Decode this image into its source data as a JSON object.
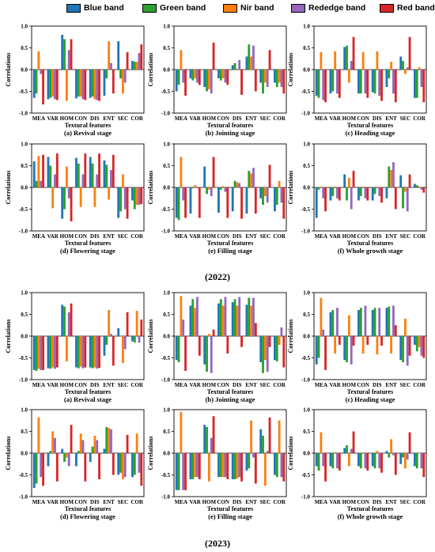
{
  "legend": [
    {
      "name": "Blue band",
      "color": "#1f77b4"
    },
    {
      "name": "Green  band",
      "color": "#2ca02c"
    },
    {
      "name": "Nir band",
      "color": "#ff7f0e"
    },
    {
      "name": "Rededge band",
      "color": "#9467bd"
    },
    {
      "name": "Red band",
      "color": "#d62728"
    }
  ],
  "years": [
    "(2022)",
    "(2023)"
  ],
  "chart_data": [
    {
      "type": "bar",
      "title": "(a) Revival stage",
      "xlabel": "Textural features",
      "ylabel": "Correlations",
      "categories": [
        "MEA",
        "VAR",
        "HOM",
        "CON",
        "DIS",
        "ENT",
        "SEC",
        "COR"
      ],
      "ylim": [
        -1.0,
        1.0
      ],
      "yticks": [
        "-1.0",
        "-0.5",
        "0.0",
        "0.5",
        "1.0"
      ],
      "series": [
        {
          "name": "Blue band",
          "values": [
            -0.65,
            -0.68,
            0.8,
            -0.66,
            -0.65,
            -0.6,
            0.65,
            0.2
          ]
        },
        {
          "name": "Green  band",
          "values": [
            -0.55,
            -0.65,
            0.7,
            -0.62,
            -0.62,
            -0.2,
            -0.2,
            0.18
          ]
        },
        {
          "name": "Nir band",
          "values": [
            0.42,
            -0.62,
            -0.72,
            -0.62,
            -0.68,
            0.65,
            -0.55,
            0.18
          ]
        },
        {
          "name": "Rededge band",
          "values": [
            -0.1,
            -0.68,
            0.45,
            -0.68,
            -0.7,
            0.15,
            -0.3,
            0.38
          ]
        },
        {
          "name": "Red band",
          "values": [
            -0.8,
            -0.7,
            0.7,
            -0.7,
            -0.72,
            -0.55,
            0.4,
            0.58
          ]
        }
      ]
    },
    {
      "type": "bar",
      "title": "(b) Jointing stage",
      "xlabel": "Textural features",
      "ylabel": "Correlations",
      "categories": [
        "MEA",
        "VAR",
        "HOM",
        "CON",
        "DIS",
        "ENT",
        "SEC",
        "COR"
      ],
      "ylim": [
        -1.0,
        1.0
      ],
      "yticks": [
        "-1.0",
        "-0.5",
        "0.0",
        "0.5",
        "1.0"
      ],
      "series": [
        {
          "name": "Blue band",
          "values": [
            -0.5,
            -0.2,
            -0.4,
            -0.2,
            0.1,
            0.3,
            -0.3,
            -0.3
          ]
        },
        {
          "name": "Green  band",
          "values": [
            -0.35,
            -0.25,
            -0.5,
            -0.25,
            0.15,
            0.58,
            -0.55,
            -0.4
          ]
        },
        {
          "name": "Nir band",
          "values": [
            0.45,
            -0.2,
            -0.45,
            -0.2,
            0.02,
            0.3,
            -0.3,
            -0.3
          ]
        },
        {
          "name": "Rededge band",
          "values": [
            -0.3,
            -0.3,
            -0.55,
            -0.3,
            0.22,
            0.55,
            -0.4,
            -0.4
          ]
        },
        {
          "name": "Red band",
          "values": [
            -0.6,
            -0.35,
            0.62,
            -0.35,
            -0.58,
            -0.5,
            0.45,
            -0.55
          ]
        }
      ]
    },
    {
      "type": "bar",
      "title": "(c) Heading stage",
      "xlabel": "Textural features",
      "ylabel": "Correlations",
      "categories": [
        "MEA",
        "VAR",
        "HOM",
        "CON",
        "DIS",
        "ENT",
        "SEC",
        "COR"
      ],
      "ylim": [
        -1.0,
        1.0
      ],
      "yticks": [
        "-1.0",
        "-0.5",
        "0.0",
        "0.5",
        "1.0"
      ],
      "series": [
        {
          "name": "Blue band",
          "values": [
            -0.6,
            -0.55,
            0.52,
            -0.55,
            -0.52,
            -0.4,
            0.3,
            -0.65
          ]
        },
        {
          "name": "Green  band",
          "values": [
            -0.65,
            -0.5,
            0.55,
            -0.55,
            -0.55,
            -0.2,
            0.2,
            -0.65
          ]
        },
        {
          "name": "Nir band",
          "values": [
            0.4,
            0.42,
            -0.3,
            0.4,
            0.42,
            0.18,
            -0.1,
            0.05
          ]
        },
        {
          "name": "Rededge band",
          "values": [
            -0.7,
            -0.55,
            0.2,
            -0.55,
            -0.6,
            -0.55,
            0.05,
            -0.4
          ]
        },
        {
          "name": "Red band",
          "values": [
            -0.75,
            -0.65,
            0.75,
            -0.65,
            -0.72,
            -0.75,
            0.75,
            -0.75
          ]
        }
      ]
    },
    {
      "type": "bar",
      "title": "(d) Flowering stage",
      "xlabel": "Textural features",
      "ylabel": "Correlations",
      "categories": [
        "MEA",
        "VAR",
        "HOM",
        "CON",
        "DIS",
        "ENT",
        "SEC",
        "COR"
      ],
      "ylim": [
        -1.0,
        1.0
      ],
      "yticks": [
        "-1.0",
        "-0.5",
        "0.0",
        "0.5",
        "1.0"
      ],
      "series": [
        {
          "name": "Blue band",
          "values": [
            0.6,
            0.7,
            -0.72,
            0.68,
            0.7,
            0.62,
            -0.7,
            -0.3
          ]
        },
        {
          "name": "Green  band",
          "values": [
            0.15,
            0.5,
            -0.5,
            0.55,
            0.55,
            0.52,
            -0.55,
            -0.5
          ]
        },
        {
          "name": "Nir band",
          "values": [
            0.72,
            -0.48,
            0.48,
            -0.45,
            -0.45,
            -0.28,
            0.3,
            -0.4
          ]
        },
        {
          "name": "Rededge band",
          "values": [
            0.15,
            0.3,
            -0.25,
            0.3,
            0.3,
            0.4,
            -0.5,
            -0.4
          ]
        },
        {
          "name": "Red band",
          "values": [
            0.75,
            0.78,
            -0.78,
            0.78,
            0.78,
            0.75,
            -0.72,
            -0.38
          ]
        }
      ]
    },
    {
      "type": "bar",
      "title": "(e) Filling stage",
      "xlabel": "Textural features",
      "ylabel": "Correlations",
      "categories": [
        "MEA",
        "VAR",
        "HOM",
        "CON",
        "DIS",
        "ENT",
        "SEC",
        "COR"
      ],
      "ylim": [
        -1.0,
        1.0
      ],
      "yticks": [
        "-1.0",
        "-0.5",
        "0.0",
        "0.5",
        "1.0"
      ],
      "series": [
        {
          "name": "Blue band",
          "values": [
            -0.7,
            -0.6,
            0.48,
            -0.58,
            -0.55,
            -0.6,
            -0.25,
            -0.55
          ]
        },
        {
          "name": "Green  band",
          "values": [
            -0.75,
            -0.02,
            -0.15,
            -0.05,
            0.15,
            0.38,
            -0.4,
            -0.4
          ]
        },
        {
          "name": "Nir band",
          "values": [
            0.7,
            0.05,
            -0.05,
            0.03,
            0.12,
            0.32,
            -0.2,
            0.15
          ]
        },
        {
          "name": "Rededge band",
          "values": [
            -0.3,
            0.02,
            -0.2,
            -0.1,
            0.1,
            0.45,
            -0.35,
            -0.35
          ]
        },
        {
          "name": "Red band",
          "values": [
            -0.7,
            -0.7,
            0.7,
            -0.7,
            -0.72,
            -0.6,
            0.52,
            -0.72
          ]
        }
      ]
    },
    {
      "type": "bar",
      "title": "(f) Whole growth stage",
      "xlabel": "Textural features",
      "ylabel": "Correlations",
      "categories": [
        "MEA",
        "VAR",
        "HOM",
        "CON",
        "DIS",
        "ENT",
        "SEC",
        "COR"
      ],
      "ylim": [
        -1.0,
        1.0
      ],
      "yticks": [
        "-1.0",
        "-0.5",
        "0.0",
        "0.5",
        "1.0"
      ],
      "series": [
        {
          "name": "Blue band",
          "values": [
            -0.7,
            -0.3,
            0.3,
            -0.3,
            -0.3,
            -0.25,
            0.28,
            0.08
          ]
        },
        {
          "name": "Green  band",
          "values": [
            -0.05,
            -0.2,
            -0.3,
            -0.2,
            -0.15,
            0.48,
            -0.48,
            0.05
          ]
        },
        {
          "name": "Nir band",
          "values": [
            0.02,
            0.02,
            0.22,
            0.02,
            0.02,
            0.4,
            -0.1,
            0.02
          ]
        },
        {
          "name": "Rededge band",
          "values": [
            -0.25,
            -0.25,
            -0.5,
            -0.25,
            -0.2,
            0.58,
            -0.55,
            -0.05
          ]
        },
        {
          "name": "Red band",
          "values": [
            -0.55,
            -0.3,
            0.38,
            -0.3,
            -0.35,
            -0.5,
            0.3,
            -0.12
          ]
        }
      ]
    },
    {
      "type": "bar",
      "title": "(a) Revival stage",
      "xlabel": "Textural features",
      "ylabel": "Correlations",
      "categories": [
        "MEA",
        "VAR",
        "HOM",
        "CON",
        "DIS",
        "ENT",
        "SEC",
        "COR"
      ],
      "ylim": [
        -1.0,
        1.0
      ],
      "yticks": [
        "-1.0",
        "-0.5",
        "0.0",
        "0.5",
        "1.0"
      ],
      "series": [
        {
          "name": "Blue band",
          "values": [
            -0.78,
            -0.74,
            0.72,
            -0.72,
            -0.72,
            -0.45,
            0.18,
            -0.12
          ]
        },
        {
          "name": "Green  band",
          "values": [
            -0.8,
            -0.75,
            0.68,
            -0.74,
            -0.74,
            -0.2,
            0.0,
            -0.15
          ]
        },
        {
          "name": "Nir band",
          "values": [
            -0.75,
            -0.72,
            -0.58,
            -0.7,
            -0.72,
            0.6,
            -0.62,
            0.58
          ]
        },
        {
          "name": "Rededge band",
          "values": [
            -0.78,
            -0.75,
            0.55,
            -0.74,
            -0.75,
            0.05,
            -0.3,
            -0.15
          ]
        },
        {
          "name": "Red band",
          "values": [
            -0.78,
            -0.72,
            0.75,
            -0.72,
            -0.73,
            -0.68,
            0.55,
            0.38
          ]
        }
      ]
    },
    {
      "type": "bar",
      "title": "(b) Jointing stage",
      "xlabel": "Textural features",
      "ylabel": "Correlations",
      "categories": [
        "MEA",
        "VAR",
        "HOM",
        "CON",
        "DIS",
        "ENT",
        "SEC",
        "COR"
      ],
      "ylim": [
        -1.0,
        1.0
      ],
      "yticks": [
        "-1.0",
        "-0.5",
        "0.0",
        "0.5",
        "1.0"
      ],
      "series": [
        {
          "name": "Blue band",
          "values": [
            -0.55,
            0.7,
            -0.65,
            0.75,
            0.78,
            0.72,
            -0.6,
            -0.55
          ]
        },
        {
          "name": "Green  band",
          "values": [
            -0.6,
            0.85,
            -0.82,
            0.85,
            0.85,
            0.88,
            -0.85,
            -0.58
          ]
        },
        {
          "name": "Nir band",
          "values": [
            0.92,
            0.65,
            0.05,
            0.7,
            0.7,
            0.7,
            -0.55,
            -0.2
          ]
        },
        {
          "name": "Rededge band",
          "values": [
            0.38,
            0.9,
            -0.85,
            0.9,
            0.9,
            0.88,
            -0.82,
            0.2
          ]
        },
        {
          "name": "Red band",
          "values": [
            -0.8,
            -0.45,
            0.15,
            -0.4,
            -0.25,
            0.3,
            -0.25,
            -0.72
          ]
        }
      ]
    },
    {
      "type": "bar",
      "title": "(c) Heading stage",
      "xlabel": "Textural features",
      "ylabel": "Correlations",
      "categories": [
        "MEA",
        "VAR",
        "HOM",
        "CON",
        "DIS",
        "ENT",
        "SEC",
        "COR"
      ],
      "ylim": [
        -1.0,
        1.0
      ],
      "yticks": [
        "-1.0",
        "-0.5",
        "0.0",
        "0.5",
        "1.0"
      ],
      "series": [
        {
          "name": "Blue band",
          "values": [
            -0.65,
            0.55,
            -0.55,
            0.6,
            0.6,
            0.65,
            -0.55,
            -0.2
          ]
        },
        {
          "name": "Green  band",
          "values": [
            -0.5,
            0.6,
            -0.6,
            0.65,
            0.65,
            0.68,
            -0.6,
            -0.35
          ]
        },
        {
          "name": "Nir band",
          "values": [
            0.88,
            -0.4,
            0.48,
            -0.4,
            -0.42,
            -0.4,
            0.4,
            -0.25
          ]
        },
        {
          "name": "Rededge band",
          "values": [
            0.15,
            0.65,
            -0.65,
            0.7,
            0.65,
            0.7,
            -0.68,
            -0.45
          ]
        },
        {
          "name": "Red band",
          "values": [
            -0.78,
            -0.2,
            -0.22,
            -0.2,
            -0.22,
            0.25,
            -0.45,
            -0.5
          ]
        }
      ]
    },
    {
      "type": "bar",
      "title": "(d) Flowering stage",
      "xlabel": "Textural features",
      "ylabel": "Correlations",
      "categories": [
        "MEA",
        "VAR",
        "HOM",
        "CON",
        "DIS",
        "ENT",
        "SEC",
        "COR"
      ],
      "ylim": [
        -1.0,
        1.0
      ],
      "yticks": [
        "-1.0",
        "-0.5",
        "0.0",
        "0.5",
        "1.0"
      ],
      "series": [
        {
          "name": "Blue band",
          "values": [
            -0.8,
            -0.3,
            0.1,
            -0.3,
            -0.2,
            0.1,
            -0.5,
            -0.55
          ]
        },
        {
          "name": "Green  band",
          "values": [
            -0.7,
            0.05,
            -0.2,
            0.05,
            0.15,
            0.6,
            -0.45,
            -0.5
          ]
        },
        {
          "name": "Nir band",
          "values": [
            0.82,
            0.5,
            -0.1,
            0.45,
            0.4,
            0.58,
            -0.6,
            0.45
          ]
        },
        {
          "name": "Rededge band",
          "values": [
            -0.55,
            0.35,
            -0.3,
            0.3,
            0.3,
            0.55,
            -0.55,
            -0.45
          ]
        },
        {
          "name": "Red band",
          "values": [
            -0.75,
            -0.65,
            0.65,
            -0.65,
            -0.6,
            -0.5,
            0.42,
            -0.75
          ]
        }
      ]
    },
    {
      "type": "bar",
      "title": "(e) Filling stage",
      "xlabel": "Textural features",
      "ylabel": "Correlations",
      "categories": [
        "MEA",
        "VAR",
        "HOM",
        "CON",
        "DIS",
        "ENT",
        "SEC",
        "COR"
      ],
      "ylim": [
        -1.0,
        1.0
      ],
      "yticks": [
        "-1.0",
        "-0.5",
        "0.0",
        "0.5",
        "1.0"
      ],
      "series": [
        {
          "name": "Blue band",
          "values": [
            -0.85,
            -0.6,
            0.65,
            -0.55,
            -0.6,
            -0.4,
            0.55,
            -0.5
          ]
        },
        {
          "name": "Green  band",
          "values": [
            -0.85,
            -0.6,
            0.6,
            -0.55,
            -0.6,
            -0.35,
            0.4,
            -0.55
          ]
        },
        {
          "name": "Nir band",
          "values": [
            0.95,
            -0.55,
            -0.65,
            -0.55,
            -0.58,
            0.75,
            -0.75,
            0.75
          ]
        },
        {
          "name": "Rededge band",
          "values": [
            -0.85,
            -0.55,
            0.35,
            -0.55,
            -0.55,
            -0.1,
            0.05,
            -0.55
          ]
        },
        {
          "name": "Red band",
          "values": [
            -0.85,
            -0.6,
            0.85,
            -0.6,
            -0.65,
            -0.7,
            0.82,
            -0.65
          ]
        }
      ]
    },
    {
      "type": "bar",
      "title": "(f) Whole growth stage",
      "xlabel": "Textural features",
      "ylabel": "Correlations",
      "categories": [
        "MEA",
        "VAR",
        "HOM",
        "CON",
        "DIS",
        "ENT",
        "SEC",
        "COR"
      ],
      "ylim": [
        -1.0,
        1.0
      ],
      "yticks": [
        "-1.0",
        "-0.5",
        "0.0",
        "0.5",
        "1.0"
      ],
      "series": [
        {
          "name": "Blue band",
          "values": [
            -0.3,
            -0.3,
            0.12,
            -0.3,
            -0.3,
            0.05,
            -0.25,
            -0.3
          ]
        },
        {
          "name": "Green  band",
          "values": [
            -0.4,
            -0.35,
            0.18,
            -0.35,
            -0.35,
            -0.1,
            -0.1,
            -0.35
          ]
        },
        {
          "name": "Nir band",
          "values": [
            0.48,
            0.02,
            -0.3,
            0.02,
            0.05,
            0.32,
            -0.35,
            0.0
          ]
        },
        {
          "name": "Rededge band",
          "values": [
            -0.3,
            -0.35,
            0.1,
            -0.35,
            -0.35,
            -0.05,
            -0.15,
            -0.35
          ]
        },
        {
          "name": "Red band",
          "values": [
            -0.65,
            -0.4,
            0.5,
            -0.4,
            -0.45,
            -0.5,
            0.48,
            -0.55
          ]
        }
      ]
    }
  ]
}
